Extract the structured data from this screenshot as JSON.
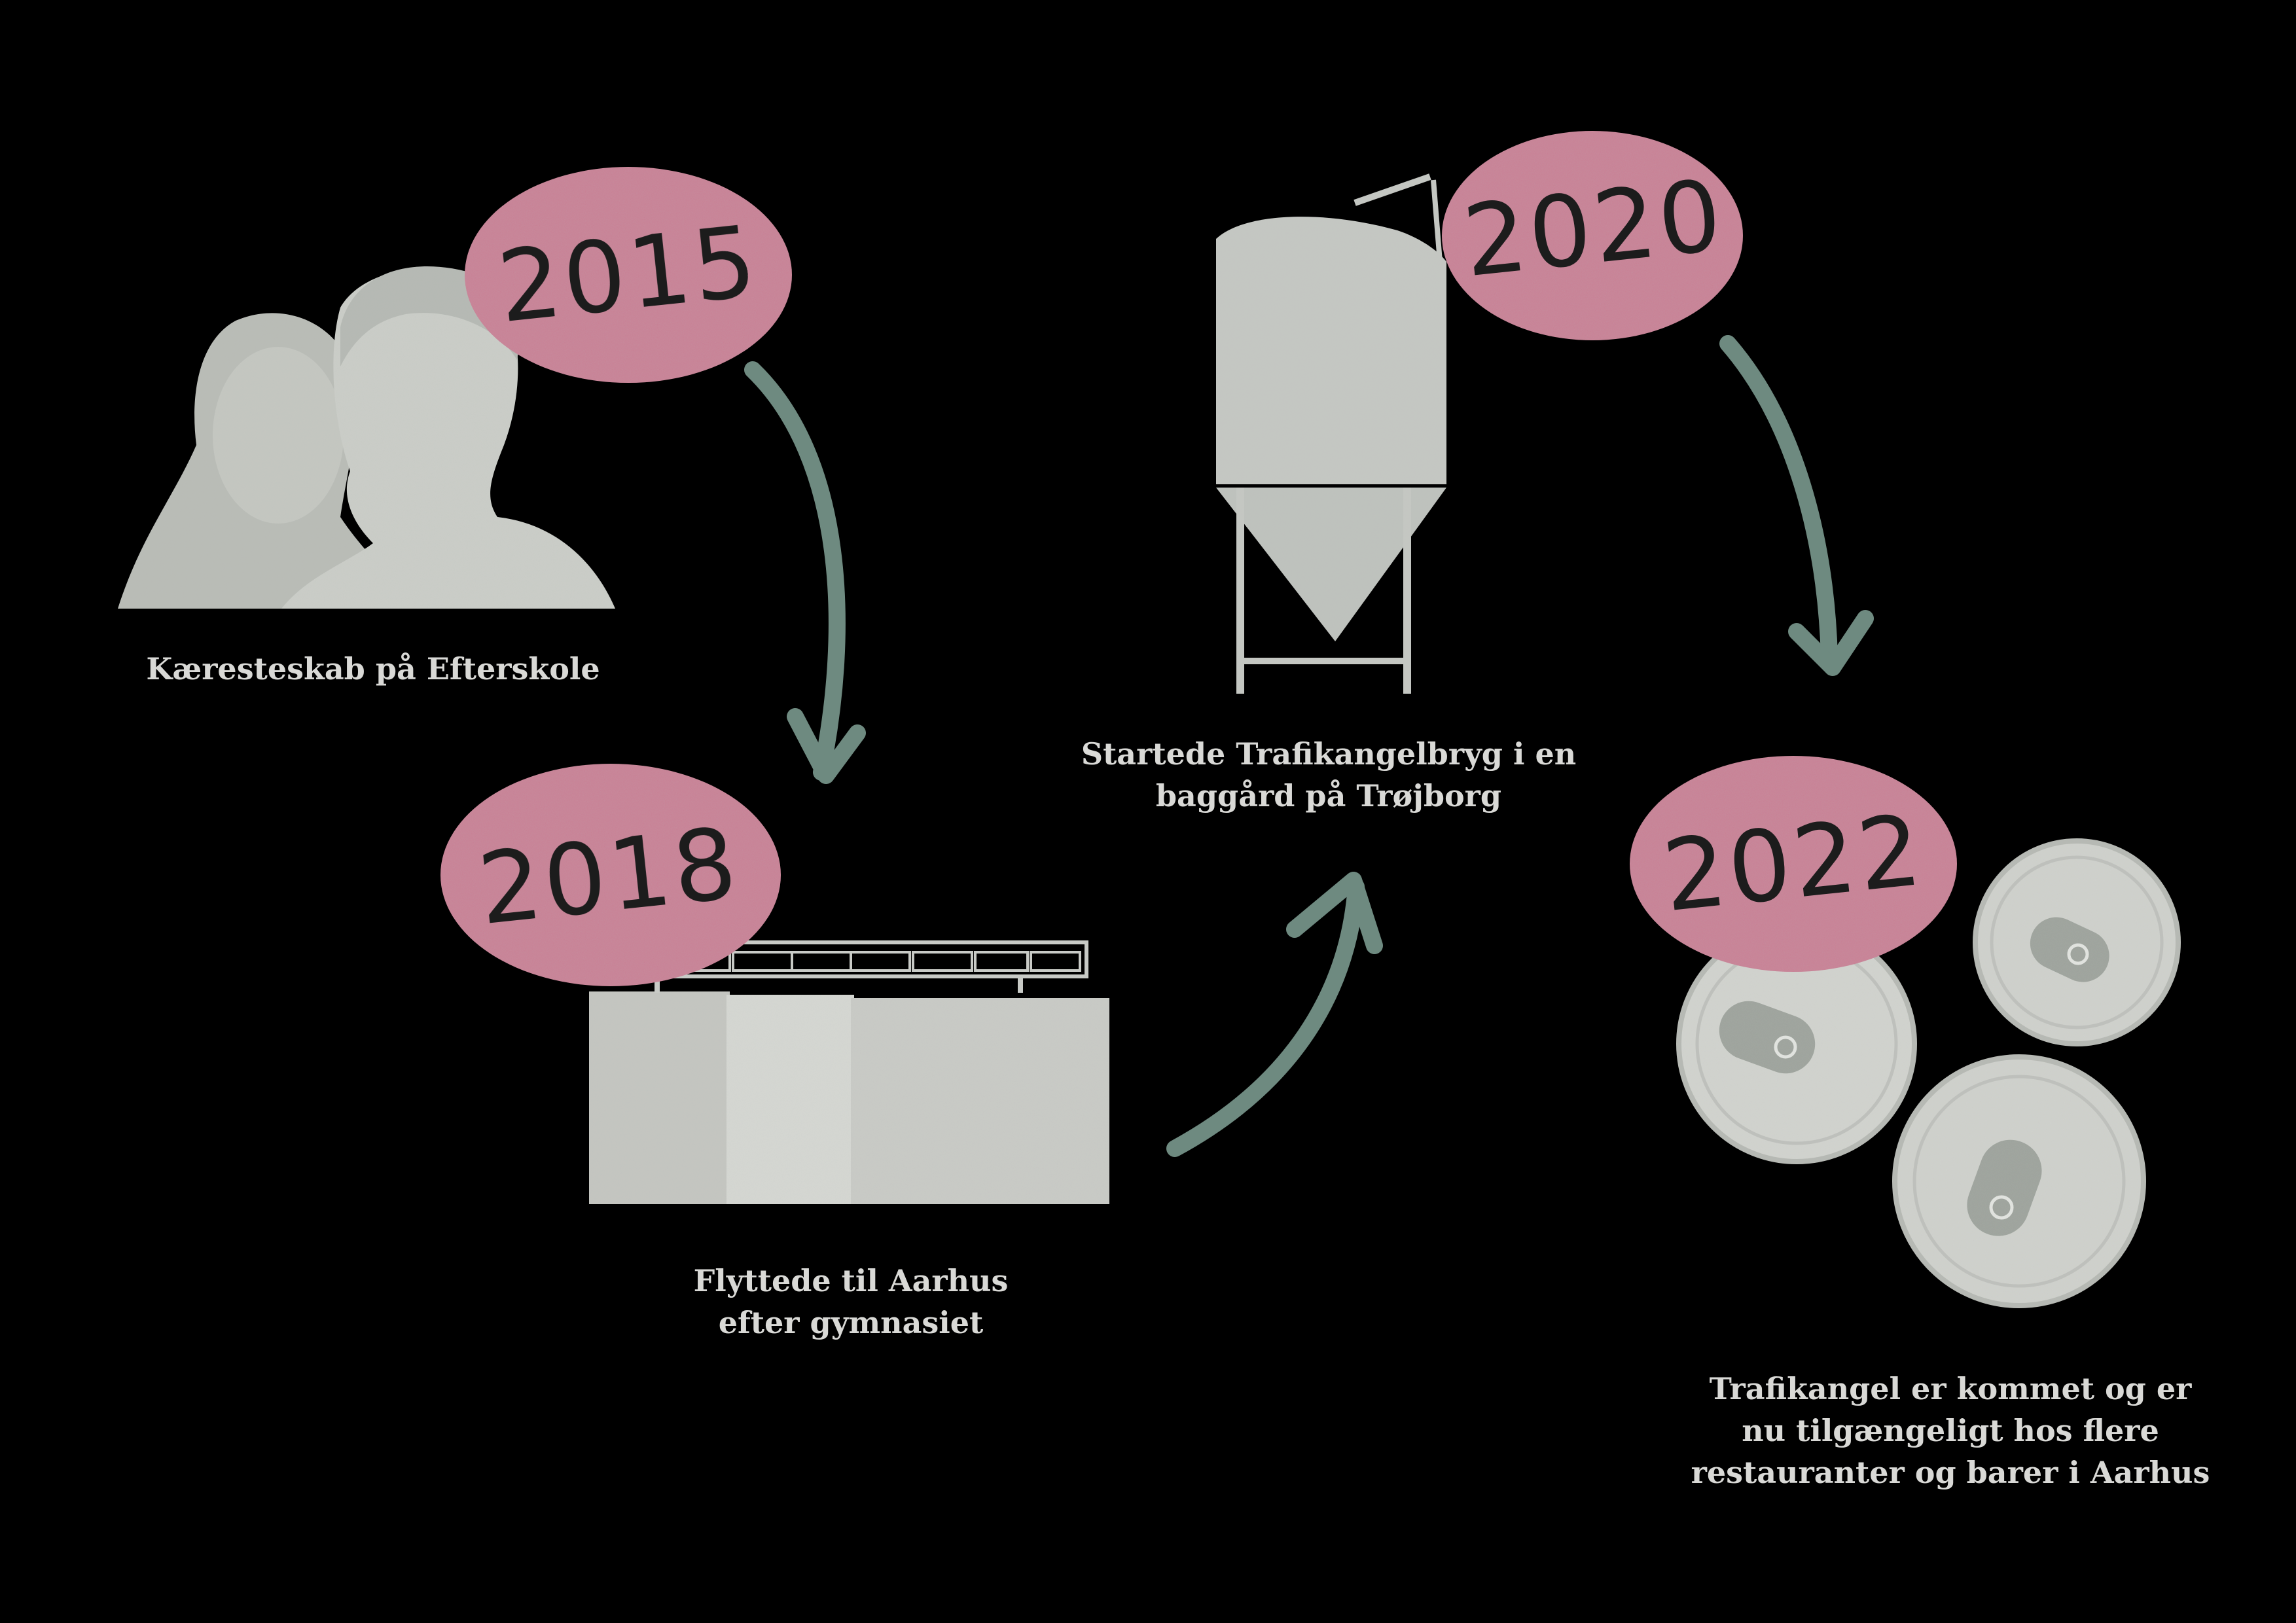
{
  "milestones": [
    {
      "year": "2015",
      "caption": [
        "Kæresteskab på Efterskole"
      ]
    },
    {
      "year": "2018",
      "caption": [
        "Flyttede til Aarhus",
        "efter gymnasiet"
      ]
    },
    {
      "year": "2020",
      "caption": [
        "Startede Trafikangelbryg i en",
        "baggård på Trøjborg"
      ]
    },
    {
      "year": "2022",
      "caption": [
        "Trafikangel er kommet og er",
        "nu tilgængeligt hos flere",
        "restauranter og barer i Aarhus"
      ]
    }
  ],
  "colors": {
    "background": "#000000",
    "badge": "#c97f94",
    "arrow": "#6e8a80",
    "illustration": "#c9ccc7",
    "text": "#d9d9d6"
  },
  "icons": [
    "couple-silhouette-icon",
    "building-icon",
    "fermenter-tank-icon",
    "beer-cans-icon",
    "curved-arrow-icon"
  ]
}
